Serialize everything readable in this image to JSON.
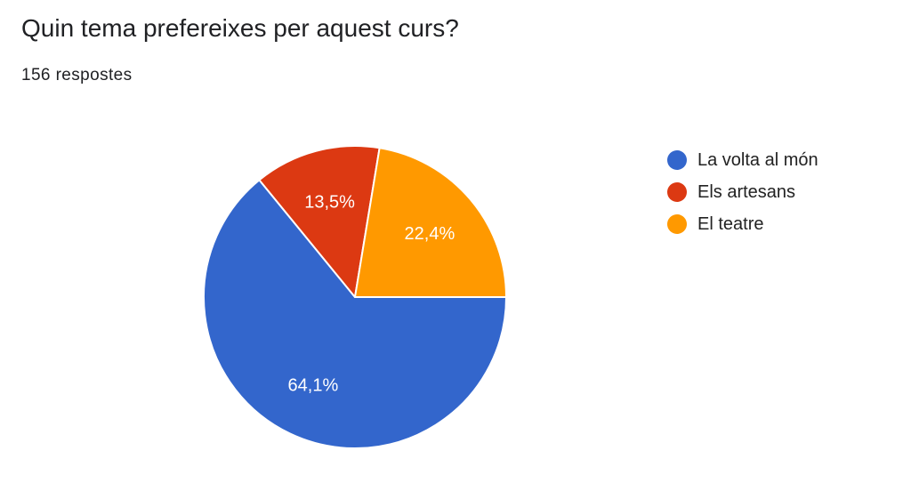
{
  "question": {
    "title": "Quin tema prefereixes per aquest curs?",
    "responses": "156 respostes"
  },
  "chart_data": {
    "type": "pie",
    "title": "Quin tema prefereixes per aquest curs?",
    "start": "90° clockwise (3 o'clock)",
    "legend_position": "right",
    "slice_border": "#ffffff",
    "slices": [
      {
        "name": "La volta al món",
        "value": 64.1,
        "label": "64,1%",
        "color": "#3366cc"
      },
      {
        "name": "Els artesans",
        "value": 13.5,
        "label": "13,5%",
        "color": "#dc3912"
      },
      {
        "name": "El teatre",
        "value": 22.4,
        "label": "22,4%",
        "color": "#ff9900"
      }
    ]
  }
}
